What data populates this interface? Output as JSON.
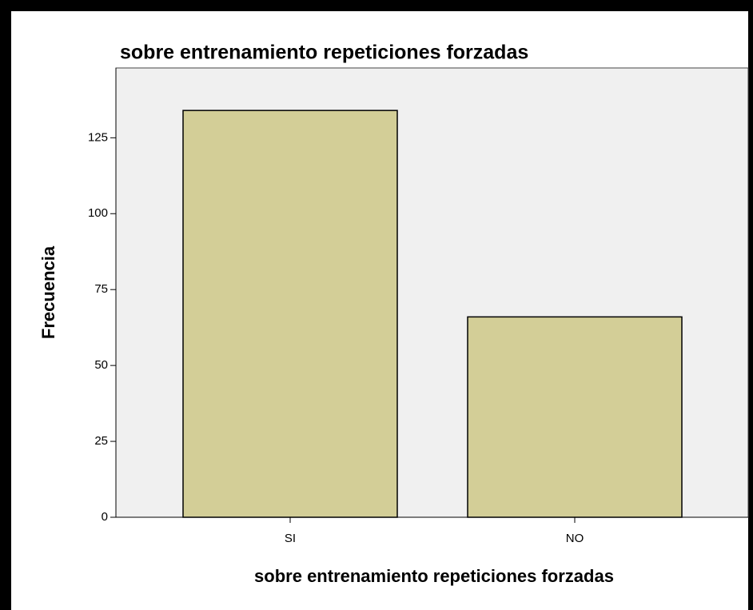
{
  "chart_data": {
    "type": "bar",
    "title": "sobre entrenamiento repeticiones forzadas",
    "x_label": "sobre entrenamiento repeticiones forzadas",
    "y_label": "Frecuencia",
    "categories": [
      "SI",
      "NO"
    ],
    "values": [
      134,
      66
    ],
    "color": "#d3ce97",
    "ylim": [
      0,
      148
    ],
    "yticks": [
      0,
      25,
      50,
      75,
      100,
      125
    ],
    "grid": false
  }
}
